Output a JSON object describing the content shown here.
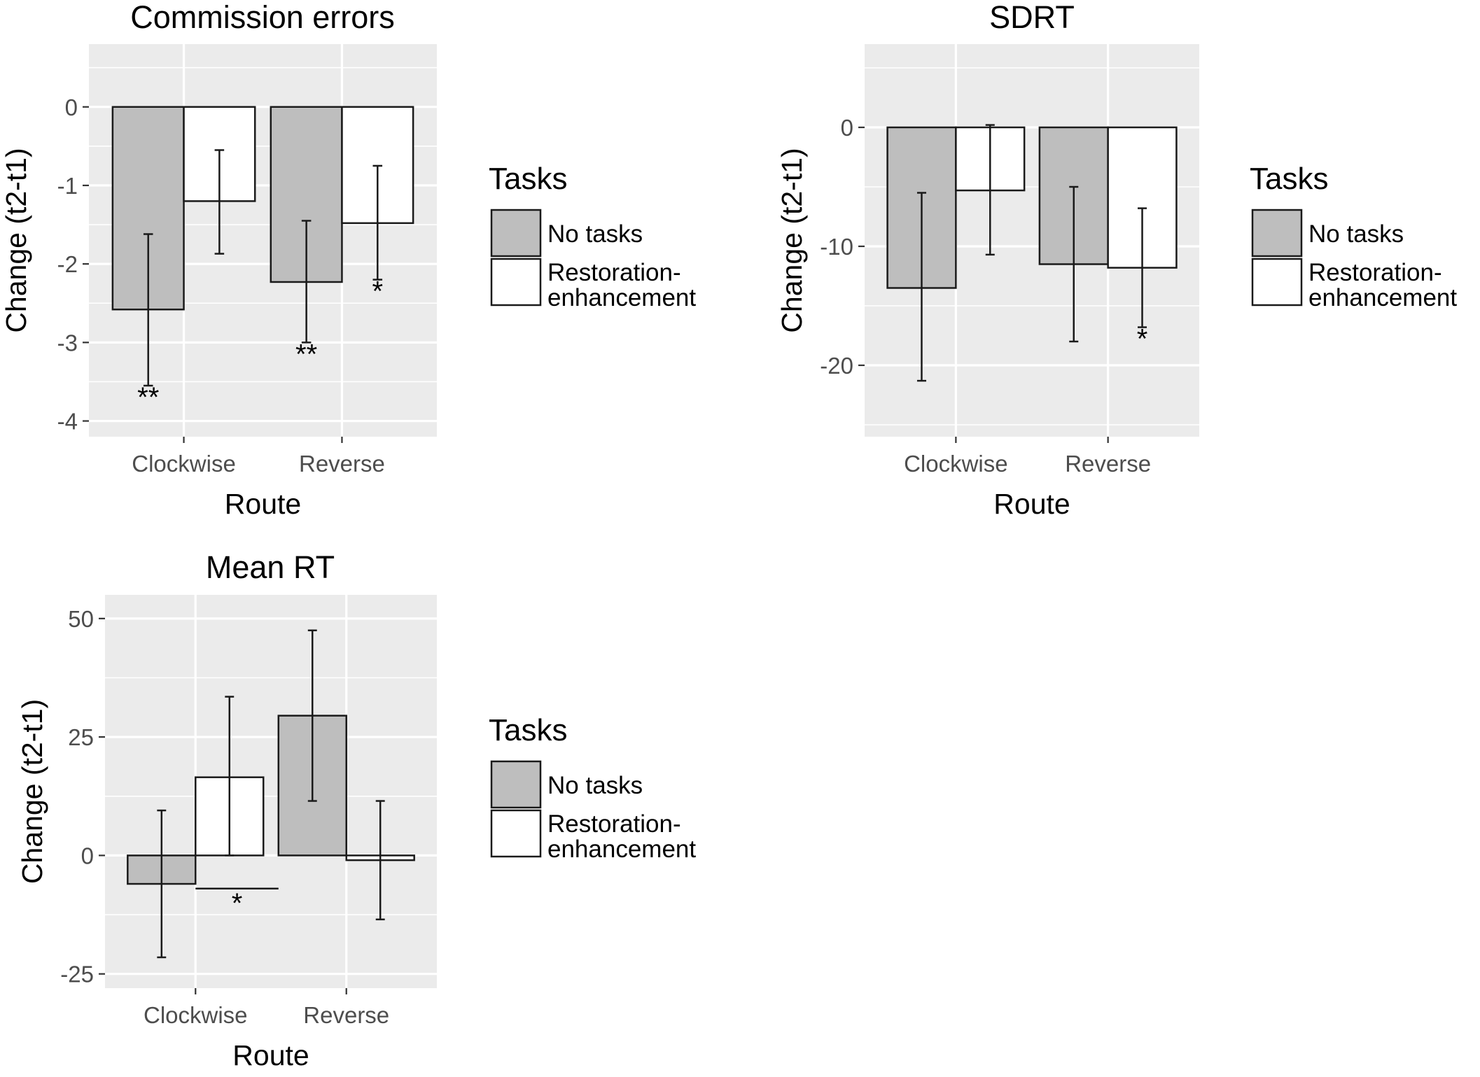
{
  "legend_title": "Tasks",
  "legend_items": [
    {
      "label": [
        "No tasks"
      ],
      "fill": "#bebebe"
    },
    {
      "label": [
        "Restoration-",
        "enhancement"
      ],
      "fill": "#ffffff"
    }
  ],
  "colors": {
    "panel_bg": "#ebebeb",
    "grid": "#ffffff",
    "no_tasks": "#bebebe",
    "restoration": "#ffffff",
    "outline": "#1a1a1a",
    "axis_text": "#4d4d4d"
  },
  "chart_data": [
    {
      "type": "bar",
      "title": "Commission errors",
      "xlabel": "Route",
      "ylabel": "Change (t2-t1)",
      "categories": [
        "Clockwise",
        "Reverse"
      ],
      "ylim": [
        -4.2,
        0.8
      ],
      "yticks": [
        0,
        -1,
        -2,
        -3,
        -4
      ],
      "grid": true,
      "legend_position": "right",
      "series": [
        {
          "name": "No tasks",
          "values": [
            -2.58,
            -2.23
          ],
          "err_low": [
            -3.55,
            -3.0
          ],
          "err_high": [
            -1.62,
            -1.45
          ],
          "sig": [
            "**",
            "**"
          ]
        },
        {
          "name": "Restoration-enhancement",
          "values": [
            -1.2,
            -1.48
          ],
          "err_low": [
            -1.87,
            -2.2
          ],
          "err_high": [
            -0.55,
            -0.75
          ],
          "sig": [
            "",
            "*"
          ]
        }
      ]
    },
    {
      "type": "bar",
      "title": "SDRT",
      "xlabel": "Route",
      "ylabel": "Change (t2-t1)",
      "categories": [
        "Clockwise",
        "Reverse"
      ],
      "ylim": [
        -26,
        7
      ],
      "yticks": [
        0,
        -10,
        -20
      ],
      "grid": true,
      "legend_position": "right",
      "series": [
        {
          "name": "No tasks",
          "values": [
            -13.5,
            -11.5
          ],
          "err_low": [
            -21.3,
            -18.0
          ],
          "err_high": [
            -5.5,
            -5.0
          ],
          "sig": [
            "",
            ""
          ]
        },
        {
          "name": "Restoration-enhancement",
          "values": [
            -5.3,
            -11.8
          ],
          "err_low": [
            -10.7,
            -16.8
          ],
          "err_high": [
            0.2,
            -6.8
          ],
          "sig": [
            "",
            "*"
          ]
        }
      ]
    },
    {
      "type": "bar",
      "title": "Mean RT",
      "xlabel": "Route",
      "ylabel": "Change (t2-t1)",
      "categories": [
        "Clockwise",
        "Reverse"
      ],
      "ylim": [
        -28,
        55
      ],
      "yticks": [
        50,
        25,
        0,
        -25
      ],
      "grid": true,
      "legend_position": "right",
      "series": [
        {
          "name": "No tasks",
          "values": [
            -6,
            29.5
          ],
          "err_low": [
            -21.5,
            11.5
          ],
          "err_high": [
            9.5,
            47.5
          ],
          "sig": [
            "",
            ""
          ]
        },
        {
          "name": "Restoration-enhancement",
          "values": [
            16.5,
            -1
          ],
          "err_low": [
            0,
            -13.5
          ],
          "err_high": [
            33.5,
            11.5
          ],
          "sig": [
            "",
            ""
          ]
        }
      ],
      "bracket": {
        "from": [
          "Clockwise",
          "Restoration-enhancement"
        ],
        "to": [
          "Reverse",
          "No tasks"
        ],
        "y": -7,
        "label": "*"
      }
    }
  ]
}
